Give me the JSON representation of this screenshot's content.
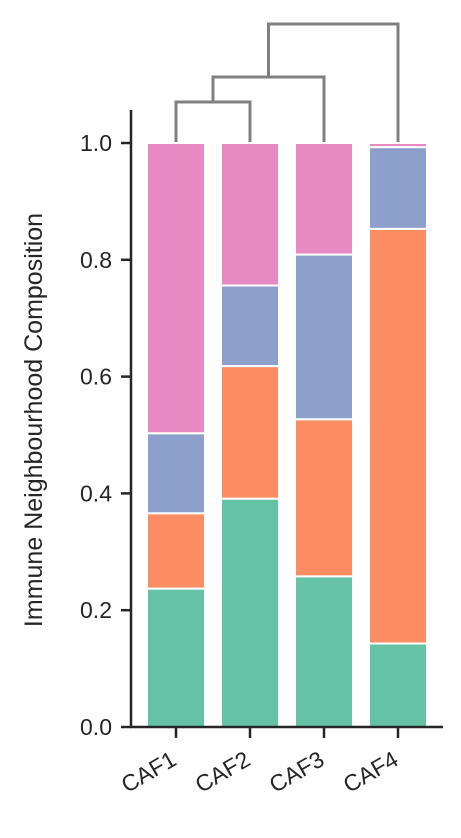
{
  "chart_data": {
    "type": "bar",
    "stacked": true,
    "categories": [
      "CAF1",
      "CAF2",
      "CAF3",
      "CAF4"
    ],
    "series": [
      {
        "color": "#66c2a5",
        "values": [
          0.237,
          0.391,
          0.258,
          0.143
        ]
      },
      {
        "color": "#fc8d62",
        "values": [
          0.129,
          0.227,
          0.269,
          0.71
        ]
      },
      {
        "color": "#8da0cb",
        "values": [
          0.137,
          0.138,
          0.282,
          0.14
        ]
      },
      {
        "color": "#e78ac3",
        "values": [
          0.497,
          0.244,
          0.191,
          0.007
        ]
      }
    ],
    "ylabel": "Immune Neighbourhood Composition",
    "xlabel": "",
    "ylim": [
      0,
      1.05
    ],
    "yticks": [
      "0.0",
      "0.2",
      "0.4",
      "0.6",
      "0.8",
      "1.0"
    ],
    "grid": false,
    "legend": "none",
    "dendrogram": {
      "leaf_order": [
        "CAF1",
        "CAF2",
        "CAF3",
        "CAF4"
      ],
      "merges": [
        [
          "CAF1",
          "CAF2"
        ],
        [
          "CAF1+CAF2",
          "CAF3"
        ],
        [
          "CAF1+CAF2+CAF3",
          "CAF4"
        ]
      ],
      "color": "#808080"
    }
  }
}
